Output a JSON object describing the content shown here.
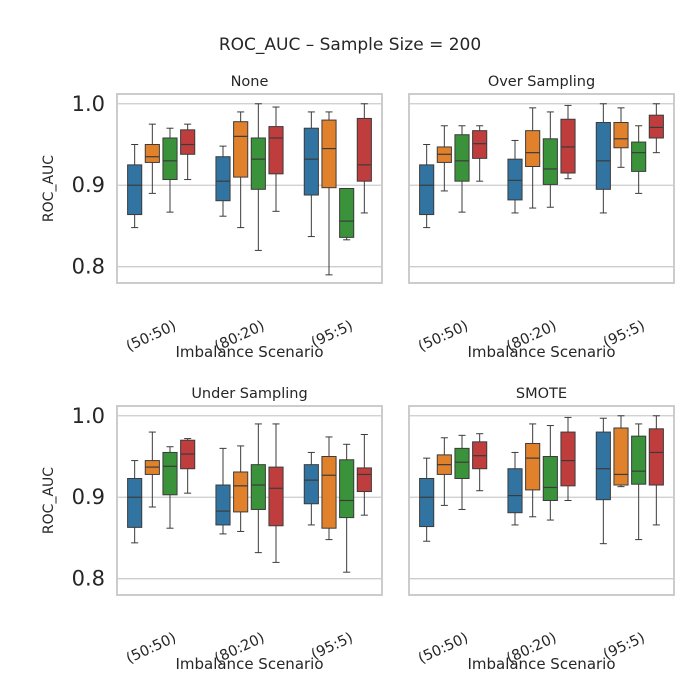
{
  "figure_title": "ROC_AUC – Sample Size = 200",
  "colors": {
    "series": [
      "#3274a1",
      "#e1812c",
      "#3a923a",
      "#c03d3e"
    ],
    "frame": "#cccccc",
    "grid": "#cccccc",
    "whisker": "#3b3b3b"
  },
  "chart_data": [
    {
      "type": "box",
      "title": "None",
      "xlabel": "Imbalance Scenario",
      "ylabel": "ROC_AUC",
      "categories": [
        "(50:50)",
        "(80:20)",
        "(95:5)"
      ],
      "ylim": [
        0.78,
        1.012
      ],
      "yticks": [
        0.8,
        0.9,
        1.0
      ],
      "ytick_labels": [
        "0.8",
        "0.9",
        "1.0"
      ],
      "grid": true,
      "series": [
        {
          "values": [
            {
              "min": 0.848,
              "q1": 0.864,
              "median": 0.9,
              "q3": 0.925,
              "max": 0.95
            },
            {
              "min": 0.862,
              "q1": 0.881,
              "median": 0.905,
              "q3": 0.935,
              "max": 0.948
            },
            {
              "min": 0.837,
              "q1": 0.888,
              "median": 0.932,
              "q3": 0.97,
              "max": 0.99
            }
          ]
        },
        {
          "values": [
            {
              "min": 0.89,
              "q1": 0.928,
              "median": 0.935,
              "q3": 0.95,
              "max": 0.975
            },
            {
              "min": 0.848,
              "q1": 0.91,
              "median": 0.96,
              "q3": 0.978,
              "max": 0.99
            },
            {
              "min": 0.79,
              "q1": 0.897,
              "median": 0.945,
              "q3": 0.98,
              "max": 0.99
            }
          ]
        },
        {
          "values": [
            {
              "min": 0.867,
              "q1": 0.907,
              "median": 0.93,
              "q3": 0.958,
              "max": 0.97
            },
            {
              "min": 0.82,
              "q1": 0.895,
              "median": 0.932,
              "q3": 0.958,
              "max": 1.0
            },
            {
              "min": 0.833,
              "q1": 0.836,
              "median": 0.856,
              "q3": 0.896,
              "max": 0.896
            }
          ]
        },
        {
          "values": [
            {
              "min": 0.907,
              "q1": 0.938,
              "median": 0.95,
              "q3": 0.968,
              "max": 0.975
            },
            {
              "min": 0.868,
              "q1": 0.914,
              "median": 0.958,
              "q3": 0.972,
              "max": 0.996
            },
            {
              "min": 0.866,
              "q1": 0.905,
              "median": 0.925,
              "q3": 0.982,
              "max": 1.0
            }
          ]
        }
      ]
    },
    {
      "type": "box",
      "title": "Over Sampling",
      "xlabel": "Imbalance Scenario",
      "ylabel": "",
      "categories": [
        "(50:50)",
        "(80:20)",
        "(95:5)"
      ],
      "ylim": [
        0.78,
        1.012
      ],
      "yticks": [
        0.8,
        0.9,
        1.0
      ],
      "ytick_labels": [],
      "grid": true,
      "series": [
        {
          "values": [
            {
              "min": 0.848,
              "q1": 0.864,
              "median": 0.9,
              "q3": 0.925,
              "max": 0.95
            },
            {
              "min": 0.866,
              "q1": 0.882,
              "median": 0.906,
              "q3": 0.932,
              "max": 0.955
            },
            {
              "min": 0.866,
              "q1": 0.895,
              "median": 0.93,
              "q3": 0.977,
              "max": 1.0
            }
          ]
        },
        {
          "values": [
            {
              "min": 0.893,
              "q1": 0.928,
              "median": 0.938,
              "q3": 0.947,
              "max": 0.973
            },
            {
              "min": 0.872,
              "q1": 0.923,
              "median": 0.94,
              "q3": 0.967,
              "max": 0.995
            },
            {
              "min": 0.922,
              "q1": 0.946,
              "median": 0.957,
              "q3": 0.977,
              "max": 0.995
            }
          ]
        },
        {
          "values": [
            {
              "min": 0.867,
              "q1": 0.905,
              "median": 0.93,
              "q3": 0.962,
              "max": 0.973
            },
            {
              "min": 0.873,
              "q1": 0.901,
              "median": 0.92,
              "q3": 0.957,
              "max": 0.99
            },
            {
              "min": 0.89,
              "q1": 0.917,
              "median": 0.94,
              "q3": 0.953,
              "max": 0.973
            }
          ]
        },
        {
          "values": [
            {
              "min": 0.905,
              "q1": 0.933,
              "median": 0.951,
              "q3": 0.967,
              "max": 0.973
            },
            {
              "min": 0.908,
              "q1": 0.915,
              "median": 0.947,
              "q3": 0.981,
              "max": 0.998
            },
            {
              "min": 0.94,
              "q1": 0.958,
              "median": 0.971,
              "q3": 0.986,
              "max": 1.0
            }
          ]
        }
      ]
    },
    {
      "type": "box",
      "title": "Under Sampling",
      "xlabel": "Imbalance Scenario",
      "ylabel": "ROC_AUC",
      "categories": [
        "(50:50)",
        "(80:20)",
        "(95:5)"
      ],
      "ylim": [
        0.78,
        1.012
      ],
      "yticks": [
        0.8,
        0.9,
        1.0
      ],
      "ytick_labels": [
        "0.8",
        "0.9",
        "1.0"
      ],
      "grid": true,
      "series": [
        {
          "values": [
            {
              "min": 0.844,
              "q1": 0.863,
              "median": 0.9,
              "q3": 0.923,
              "max": 0.945
            },
            {
              "min": 0.855,
              "q1": 0.866,
              "median": 0.883,
              "q3": 0.915,
              "max": 0.96
            },
            {
              "min": 0.866,
              "q1": 0.892,
              "median": 0.921,
              "q3": 0.94,
              "max": 0.955
            }
          ]
        },
        {
          "values": [
            {
              "min": 0.888,
              "q1": 0.928,
              "median": 0.937,
              "q3": 0.945,
              "max": 0.98
            },
            {
              "min": 0.858,
              "q1": 0.882,
              "median": 0.914,
              "q3": 0.931,
              "max": 0.963
            },
            {
              "min": 0.848,
              "q1": 0.862,
              "median": 0.927,
              "q3": 0.95,
              "max": 0.974
            }
          ]
        },
        {
          "values": [
            {
              "min": 0.862,
              "q1": 0.903,
              "median": 0.938,
              "q3": 0.955,
              "max": 0.962
            },
            {
              "min": 0.832,
              "q1": 0.885,
              "median": 0.915,
              "q3": 0.94,
              "max": 0.99
            },
            {
              "min": 0.808,
              "q1": 0.875,
              "median": 0.896,
              "q3": 0.946,
              "max": 0.965
            }
          ]
        },
        {
          "values": [
            {
              "min": 0.905,
              "q1": 0.935,
              "median": 0.953,
              "q3": 0.97,
              "max": 0.972
            },
            {
              "min": 0.82,
              "q1": 0.865,
              "median": 0.911,
              "q3": 0.937,
              "max": 0.99
            },
            {
              "min": 0.878,
              "q1": 0.907,
              "median": 0.928,
              "q3": 0.936,
              "max": 0.977
            }
          ]
        }
      ]
    },
    {
      "type": "box",
      "title": "SMOTE",
      "xlabel": "Imbalance Scenario",
      "ylabel": "",
      "categories": [
        "(50:50)",
        "(80:20)",
        "(95:5)"
      ],
      "ylim": [
        0.78,
        1.012
      ],
      "yticks": [
        0.8,
        0.9,
        1.0
      ],
      "ytick_labels": [],
      "grid": true,
      "series": [
        {
          "values": [
            {
              "min": 0.846,
              "q1": 0.864,
              "median": 0.9,
              "q3": 0.923,
              "max": 0.948
            },
            {
              "min": 0.866,
              "q1": 0.881,
              "median": 0.902,
              "q3": 0.935,
              "max": 0.955
            },
            {
              "min": 0.843,
              "q1": 0.897,
              "median": 0.935,
              "q3": 0.98,
              "max": 0.997
            }
          ]
        },
        {
          "values": [
            {
              "min": 0.89,
              "q1": 0.928,
              "median": 0.94,
              "q3": 0.952,
              "max": 0.973
            },
            {
              "min": 0.876,
              "q1": 0.909,
              "median": 0.948,
              "q3": 0.966,
              "max": 0.99
            },
            {
              "min": 0.913,
              "q1": 0.915,
              "median": 0.928,
              "q3": 0.985,
              "max": 1.0
            }
          ]
        },
        {
          "values": [
            {
              "min": 0.885,
              "q1": 0.923,
              "median": 0.943,
              "q3": 0.96,
              "max": 0.976
            },
            {
              "min": 0.872,
              "q1": 0.896,
              "median": 0.912,
              "q3": 0.95,
              "max": 0.988
            },
            {
              "min": 0.848,
              "q1": 0.916,
              "median": 0.932,
              "q3": 0.975,
              "max": 0.99
            }
          ]
        },
        {
          "values": [
            {
              "min": 0.908,
              "q1": 0.935,
              "median": 0.951,
              "q3": 0.968,
              "max": 0.978
            },
            {
              "min": 0.896,
              "q1": 0.914,
              "median": 0.945,
              "q3": 0.98,
              "max": 0.998
            },
            {
              "min": 0.866,
              "q1": 0.915,
              "median": 0.955,
              "q3": 0.984,
              "max": 1.0
            }
          ]
        }
      ]
    }
  ]
}
